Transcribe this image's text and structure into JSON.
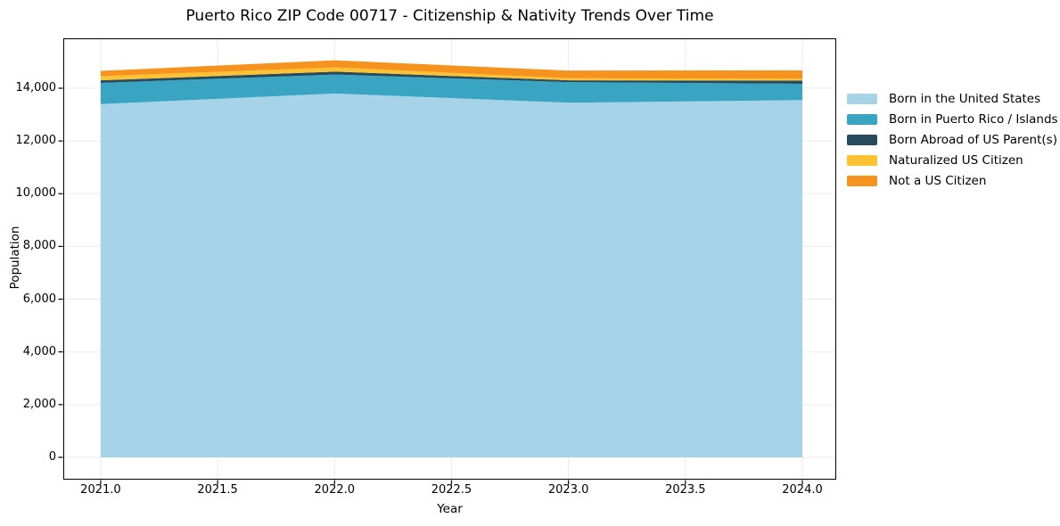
{
  "figure": {
    "title": "Puerto Rico ZIP Code 00717 - Citizenship & Nativity Trends Over Time"
  },
  "axes": {
    "x_label": "Year",
    "y_label": "Population",
    "x_tick_labels": [
      "2021.0",
      "2021.5",
      "2022.0",
      "2022.5",
      "2023.0",
      "2023.5",
      "2024.0"
    ],
    "y_tick_labels": [
      "0",
      "2,000",
      "4,000",
      "6,000",
      "8,000",
      "10,000",
      "12,000",
      "14,000"
    ]
  },
  "colors": {
    "background": "#ffffff",
    "spine": "#000000",
    "grid": "#ebebeb",
    "tick": "#000000",
    "text": "#000000"
  },
  "chart_data": {
    "type": "area",
    "stacked": true,
    "title": "Puerto Rico ZIP Code 00717 - Citizenship & Nativity Trends Over Time",
    "xlabel": "Year",
    "ylabel": "Population",
    "x": [
      2021,
      2022,
      2023,
      2024
    ],
    "series": [
      {
        "name": "Born in the United States",
        "color": "#a6d3e8",
        "values": [
          13400,
          13800,
          13450,
          13550
        ]
      },
      {
        "name": "Born in Puerto Rico / Islands",
        "color": "#3aa5c2",
        "values": [
          800,
          720,
          780,
          620
        ]
      },
      {
        "name": "Born Abroad of US Parent(s)",
        "color": "#254b5c",
        "values": [
          100,
          110,
          70,
          120
        ]
      },
      {
        "name": "Naturalized US Citizen",
        "color": "#fcc233",
        "values": [
          160,
          160,
          80,
          70
        ]
      },
      {
        "name": "Not a US Citizen",
        "color": "#f6921e",
        "values": [
          200,
          270,
          290,
          320
        ]
      }
    ],
    "x_tick_values": [
      2021,
      2021.5,
      2022,
      2022.5,
      2023,
      2023.5,
      2024
    ],
    "y_tick_values": [
      0,
      2000,
      4000,
      6000,
      8000,
      10000,
      12000,
      14000
    ],
    "xlim": [
      2020.844,
      2024.141
    ],
    "ylim": [
      -812,
      15859
    ],
    "grid": true,
    "legend_position": "outside-right-top"
  }
}
